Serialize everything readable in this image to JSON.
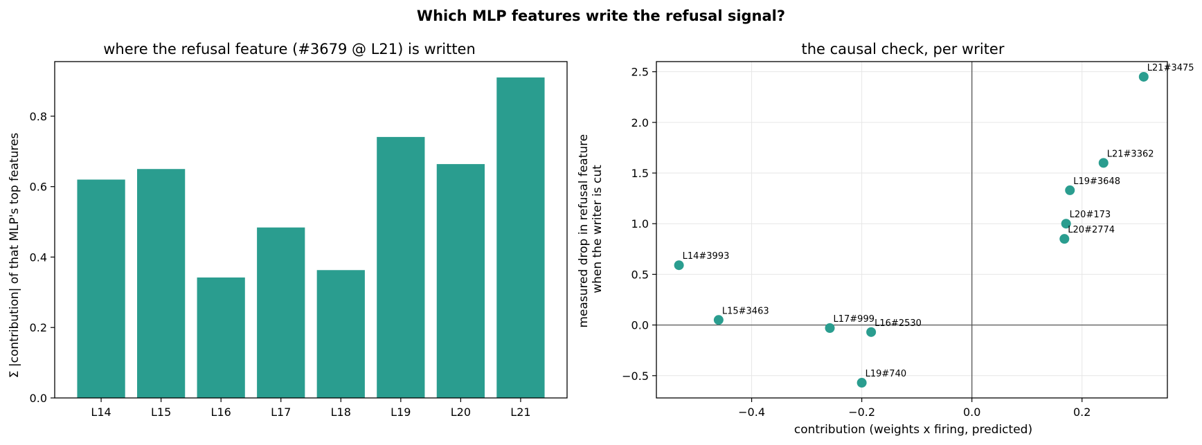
{
  "figure": {
    "title": "Which MLP features write the refusal signal?"
  },
  "colors": {
    "accent": "#2a9d8f",
    "reference_line": "#555555",
    "grid": "#e6e6e6"
  },
  "chart_data": [
    {
      "type": "bar",
      "title": "where the refusal feature (#3679 @ L21) is written",
      "xlabel": "",
      "ylabel": "Σ |contribution| of that MLP's top features",
      "categories": [
        "L14",
        "L15",
        "L16",
        "L17",
        "L18",
        "L19",
        "L20",
        "L21"
      ],
      "values": [
        0.62,
        0.65,
        0.342,
        0.484,
        0.363,
        0.741,
        0.664,
        0.91
      ],
      "ylim": [
        0,
        0.955
      ],
      "yticks": [
        0.0,
        0.2,
        0.4,
        0.6,
        0.8
      ],
      "grid": false,
      "color": "#2a9d8f"
    },
    {
      "type": "scatter",
      "title": "the causal check, per writer",
      "xlabel": "contribution (weights x firing, predicted)",
      "ylabel": [
        "measured drop in refusal feature",
        "when the writer is cut"
      ],
      "xlim": [
        -0.573,
        0.355
      ],
      "ylim": [
        -0.72,
        2.6
      ],
      "xticks": [
        -0.4,
        -0.2,
        0.0,
        0.2
      ],
      "yticks": [
        -0.5,
        0.0,
        0.5,
        1.0,
        1.5,
        2.0,
        2.5
      ],
      "grid": true,
      "reference_lines": {
        "x": 0,
        "y": 0
      },
      "color": "#2a9d8f",
      "points": [
        {
          "label": "L21#3475",
          "x": 0.312,
          "y": 2.45
        },
        {
          "label": "L21#3362",
          "x": 0.239,
          "y": 1.6
        },
        {
          "label": "L19#3648",
          "x": 0.178,
          "y": 1.33
        },
        {
          "label": "L20#173",
          "x": 0.171,
          "y": 1.0
        },
        {
          "label": "L20#2774",
          "x": 0.168,
          "y": 0.85
        },
        {
          "label": "L14#3993",
          "x": -0.532,
          "y": 0.59
        },
        {
          "label": "L15#3463",
          "x": -0.46,
          "y": 0.05
        },
        {
          "label": "L17#999",
          "x": -0.258,
          "y": -0.03
        },
        {
          "label": "L16#2530",
          "x": -0.183,
          "y": -0.07
        },
        {
          "label": "L19#740",
          "x": -0.2,
          "y": -0.57
        }
      ]
    }
  ]
}
